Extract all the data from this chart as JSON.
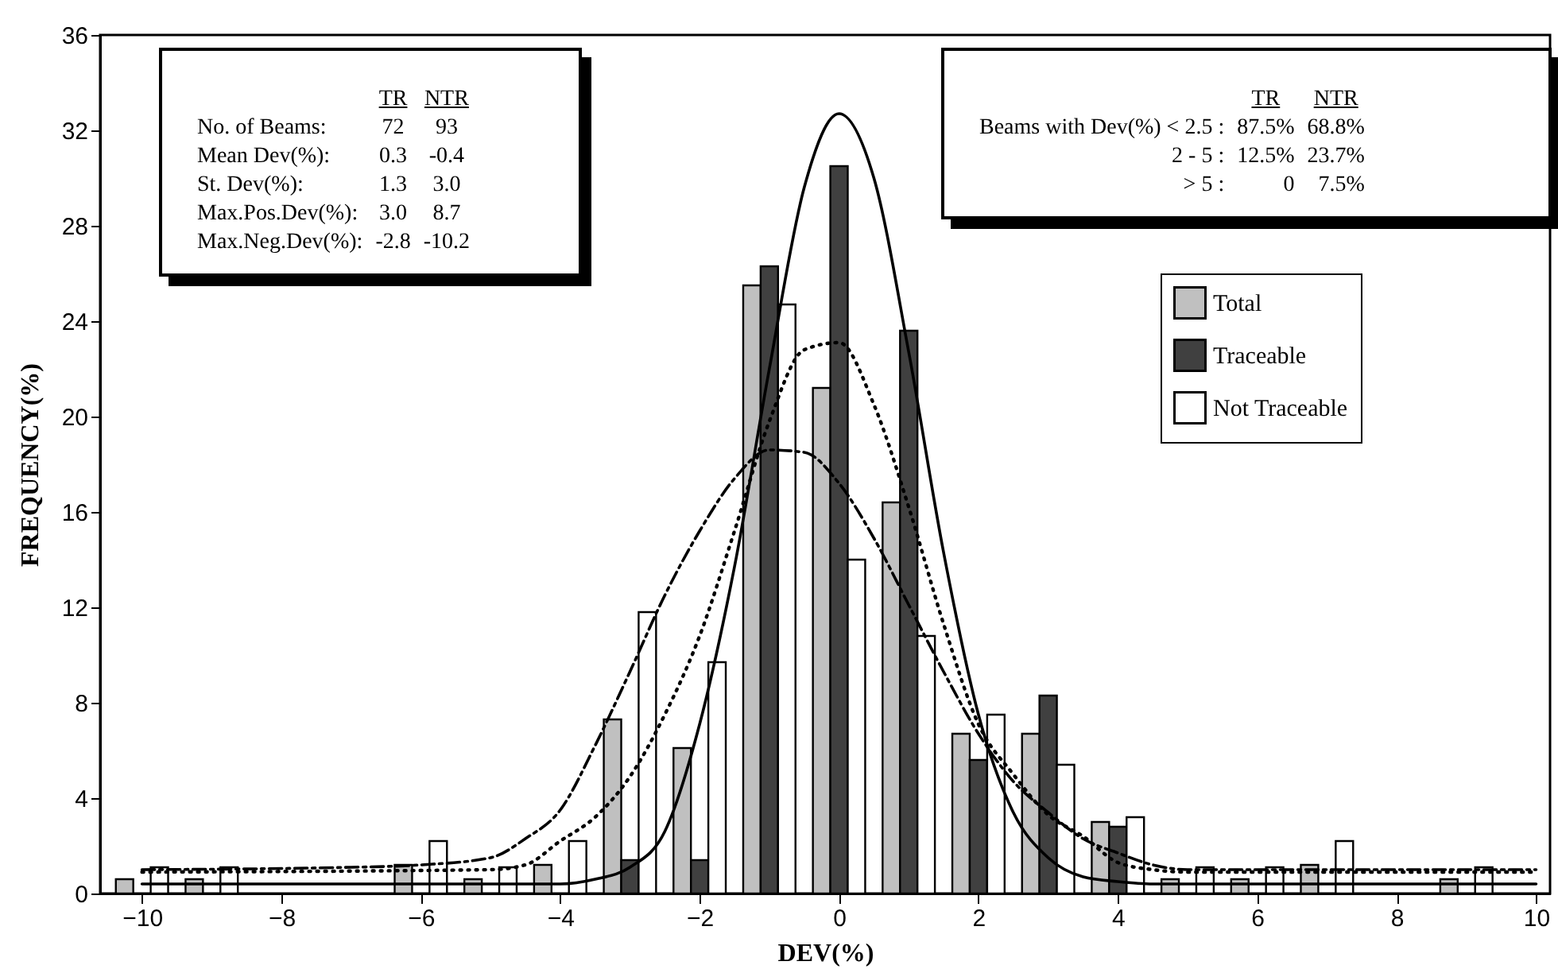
{
  "chart_data": {
    "type": "bar",
    "xlabel": "DEV(%)",
    "ylabel": "FREQUENCY(%)",
    "x": [
      -10,
      -9,
      -6,
      -5,
      -4,
      -3,
      -2,
      -1,
      0,
      1,
      2,
      3,
      4,
      5,
      6,
      7,
      9
    ],
    "xlim": [
      -10.6,
      10.2
    ],
    "xticks": [
      -10,
      -8,
      -6,
      -4,
      -2,
      0,
      2,
      4,
      6,
      8,
      10
    ],
    "ylim": [
      0,
      36
    ],
    "yticks": [
      0,
      4,
      8,
      12,
      16,
      20,
      24,
      28,
      32,
      36
    ],
    "legend": "top right",
    "grid": false,
    "series": [
      {
        "name": "Total",
        "color": "#c0c0c0",
        "values": [
          0.6,
          0.6,
          1.2,
          0.6,
          1.2,
          7.3,
          6.1,
          25.5,
          21.2,
          16.4,
          6.7,
          6.7,
          3.0,
          0.6,
          0.6,
          1.2,
          0.6
        ]
      },
      {
        "name": "Traceable",
        "color": "#404040",
        "values": [
          null,
          null,
          null,
          null,
          null,
          1.4,
          1.4,
          26.3,
          30.5,
          23.6,
          5.6,
          8.3,
          2.8,
          null,
          null,
          null,
          null
        ]
      },
      {
        "name": "Not Traceable",
        "color": "#ffffff",
        "values": [
          1.1,
          1.1,
          2.2,
          1.1,
          2.2,
          11.8,
          9.7,
          24.7,
          14.0,
          10.8,
          7.5,
          5.4,
          3.2,
          1.1,
          1.1,
          2.2,
          1.1
        ]
      },
      {
        "type": "line",
        "color": "#000000",
        "line_style": "dotted",
        "x": [
          -10,
          -5,
          -4.5,
          -4,
          -3.5,
          -3,
          -2.5,
          -2,
          -1.5,
          -1,
          -0.5,
          0,
          0.5,
          1,
          1.5,
          2,
          2.5,
          3,
          3.5,
          4,
          4.5,
          5,
          10
        ],
        "values": [
          0.9,
          1.0,
          1.2,
          2.2,
          3.2,
          4.9,
          7.5,
          10.8,
          15.2,
          19.8,
          22.8,
          23.1,
          20.5,
          16.2,
          11.3,
          7.1,
          5.0,
          3.3,
          2.4,
          1.3,
          1.0,
          0.9,
          0.9
        ]
      },
      {
        "type": "line",
        "color": "#000000",
        "line_style": "solid",
        "x": [
          -10,
          -4,
          -3.5,
          -3,
          -2.5,
          -2,
          -1.5,
          -1,
          -0.5,
          0,
          0.5,
          1,
          1.5,
          2,
          2.5,
          3,
          3.5,
          4,
          4.5,
          10
        ],
        "values": [
          0.4,
          0.4,
          0.6,
          1.1,
          2.6,
          7.1,
          13.7,
          22.0,
          29.6,
          32.7,
          30.0,
          22.7,
          14.3,
          7.5,
          3.4,
          1.5,
          0.7,
          0.5,
          0.4,
          0.4
        ]
      },
      {
        "type": "line",
        "color": "#000000",
        "line_style": "dashed",
        "x": [
          -10,
          -7,
          -6,
          -5,
          -4.5,
          -4,
          -3.5,
          -3,
          -2.5,
          -2,
          -1.5,
          -1,
          -0.5,
          0,
          0.5,
          1,
          1.5,
          2,
          2.5,
          3,
          3.5,
          4,
          4.5,
          5,
          10
        ],
        "values": [
          1.0,
          1.1,
          1.2,
          1.5,
          2.3,
          3.5,
          6.2,
          9.3,
          12.5,
          15.2,
          17.4,
          18.6,
          18.5,
          17.2,
          14.9,
          12.1,
          9.3,
          6.7,
          4.7,
          3.4,
          2.3,
          1.7,
          1.2,
          1.0,
          1.0
        ]
      }
    ],
    "annotations": [
      "TR",
      "NTR",
      "No. of Beams:",
      "72",
      "93",
      "Mean Dev(%):",
      "0.3",
      "-0.4",
      "St. Dev(%):",
      "1.3",
      "3.0",
      "Max.Pos.Dev(%):",
      "3.0",
      "8.7",
      "Max.Neg.Dev(%):",
      "-2.8",
      "-10.2",
      "TR",
      "NTR",
      "Beams with Dev(%) < 2.5 :",
      "87.5%",
      "68.8%",
      "2 - 5 :",
      "12.5%",
      "23.7%",
      "> 5 :",
      "0",
      "7.5%"
    ]
  }
}
